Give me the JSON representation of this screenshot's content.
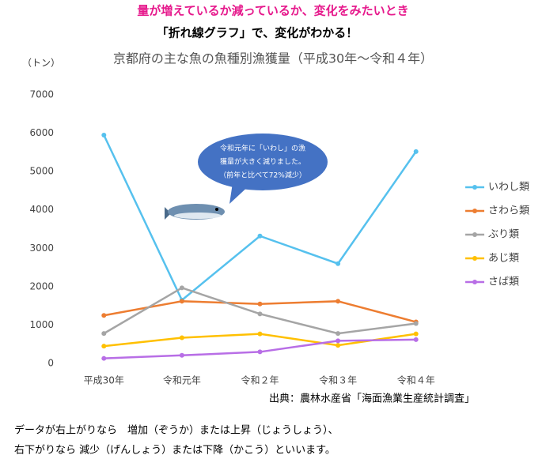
{
  "header": {
    "line1": "量が増えているか減っているか、変化をみたいとき",
    "line2": "「折れ線グラフ」で、変化がわかる！"
  },
  "chart_data": {
    "type": "line",
    "title": "京都府の主な魚の魚種別漁獲量（平成30年～令和４年）",
    "y_label": "（トン）",
    "categories": [
      "平成30年",
      "令和元年",
      "令和２年",
      "令和３年",
      "令和４年"
    ],
    "series": [
      {
        "name": "いわし類",
        "color": "#56c1ee",
        "values": [
          5950,
          1650,
          3320,
          2600,
          5520
        ]
      },
      {
        "name": "さわら類",
        "color": "#ed7d31",
        "values": [
          1250,
          1620,
          1550,
          1620,
          1080
        ]
      },
      {
        "name": "ぶり類",
        "color": "#a5a5a5",
        "values": [
          780,
          1970,
          1290,
          780,
          1040
        ]
      },
      {
        "name": "あじ類",
        "color": "#ffc000",
        "values": [
          450,
          670,
          770,
          470,
          770
        ]
      },
      {
        "name": "さば類",
        "color": "#b86ee6",
        "values": [
          130,
          210,
          300,
          590,
          620
        ]
      }
    ],
    "ylim": [
      0,
      7000
    ],
    "yticks": [
      0,
      1000,
      2000,
      3000,
      4000,
      5000,
      6000,
      7000
    ],
    "grid": false,
    "legend": "right",
    "annotation": [
      "令和元年に「いわし」の漁",
      "獲量が大きく減りました。",
      "（前年と比べて72%減少）"
    ],
    "source": "出典：農林水産省「海面漁業生産統計調査」"
  },
  "footer": {
    "line1": "データが右上がりなら　増加（ぞうか）または上昇（じょうしょう）、",
    "line2": "右下がりなら 減少（げんしょう）または下降（かこう）といいます。"
  }
}
